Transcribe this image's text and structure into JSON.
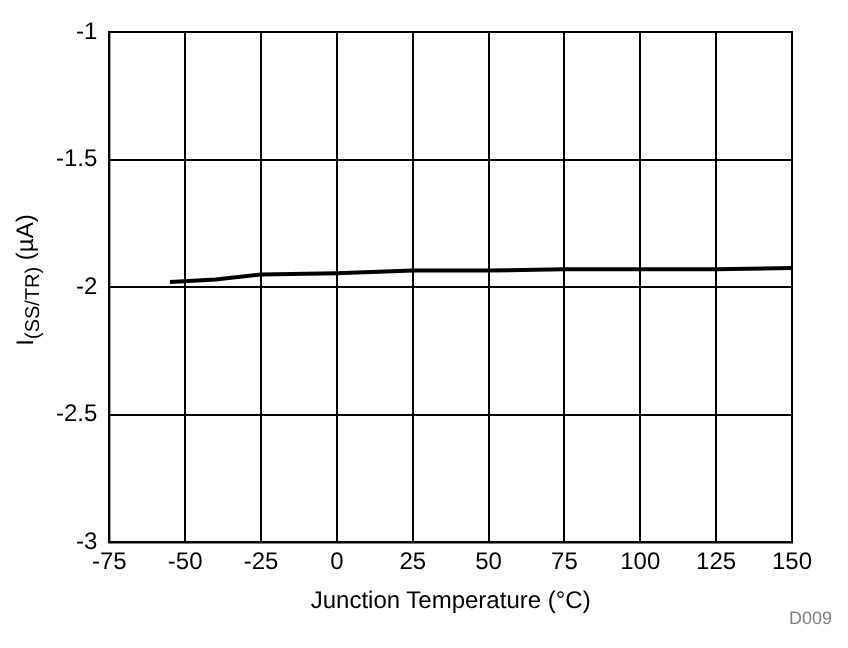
{
  "chart_data": {
    "type": "line",
    "xlabel": "Junction Temperature (°C)",
    "ylabel": "I$_{(SS/TR)}$ (µA)",
    "annotations": [
      "D009"
    ],
    "x": [
      -55,
      -40,
      -25,
      0,
      25,
      50,
      75,
      100,
      125,
      150
    ],
    "series": [
      {
        "color": "#000000",
        "values": [
          -1.98,
          -1.97,
          -1.95,
          -1.945,
          -1.935,
          -1.935,
          -1.93,
          -1.93,
          -1.93,
          -1.925
        ]
      }
    ],
    "xlim": [
      -75,
      150
    ],
    "xticks": [
      -75,
      -50,
      -25,
      0,
      25,
      50,
      75,
      100,
      125,
      150
    ],
    "ylim": [
      -3,
      -1
    ],
    "yticks": [
      -3,
      -2.5,
      -2,
      -1.5,
      -1
    ],
    "grid": true,
    "legend": false,
    "marker": "none",
    "line_style": "solid"
  }
}
